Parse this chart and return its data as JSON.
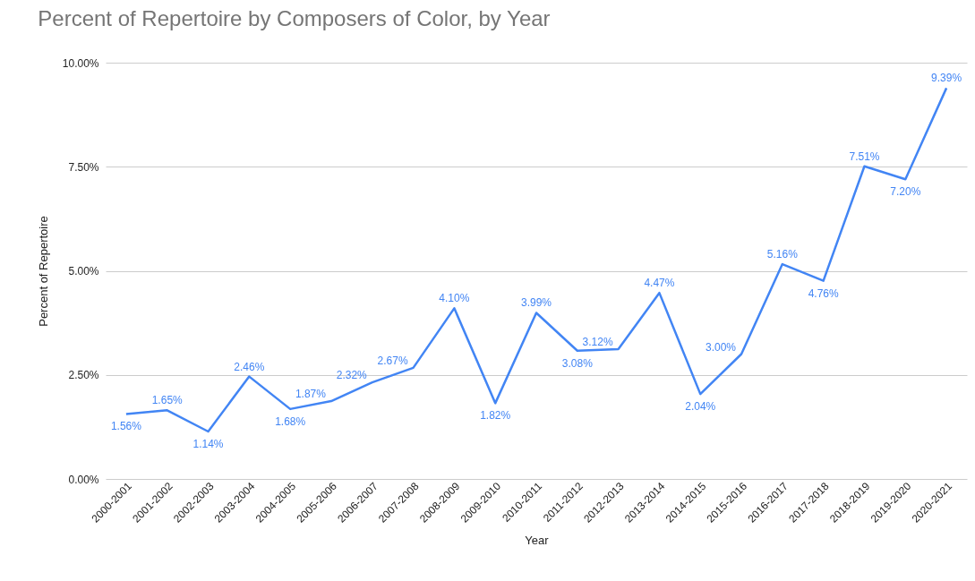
{
  "chart_data": {
    "type": "line",
    "title": "Percent of Repertoire by Composers of Color, by Year",
    "xlabel": "Year",
    "ylabel": "Percent of Repertoire",
    "categories": [
      "2000-2001",
      "2001-2002",
      "2002-2003",
      "2003-2004",
      "2004-2005",
      "2005-2006",
      "2006-2007",
      "2007-2008",
      "2008-2009",
      "2009-2010",
      "2010-2011",
      "2011-2012",
      "2012-2013",
      "2013-2014",
      "2014-2015",
      "2015-2016",
      "2016-2017",
      "2017-2018",
      "2018-2019",
      "2019-2020",
      "2020-2021"
    ],
    "series": [
      {
        "color": "#4285f4",
        "values": [
          1.56,
          1.65,
          1.14,
          2.46,
          1.68,
          1.87,
          2.32,
          2.67,
          4.1,
          1.82,
          3.99,
          3.08,
          3.12,
          4.47,
          2.04,
          3.0,
          5.16,
          4.76,
          7.51,
          7.2,
          9.39
        ],
        "value_labels": [
          "1.56%",
          "1.65%",
          "1.14%",
          "2.46%",
          "1.68%",
          "1.87%",
          "2.32%",
          "2.67%",
          "4.10%",
          "1.82%",
          "3.99%",
          "3.08%",
          "3.12%",
          "4.47%",
          "2.04%",
          "3.00%",
          "5.16%",
          "4.76%",
          "7.51%",
          "7.20%",
          "9.39%"
        ]
      }
    ],
    "ylim": [
      0,
      10
    ],
    "yticks": [
      {
        "value": 0,
        "label": "0.00%"
      },
      {
        "value": 2.5,
        "label": "2.50%"
      },
      {
        "value": 5,
        "label": "5.00%"
      },
      {
        "value": 7.5,
        "label": "7.50%"
      },
      {
        "value": 10,
        "label": "10.00%"
      }
    ],
    "grid": "y",
    "marker": "none",
    "line_style": "solid",
    "legend": false
  }
}
